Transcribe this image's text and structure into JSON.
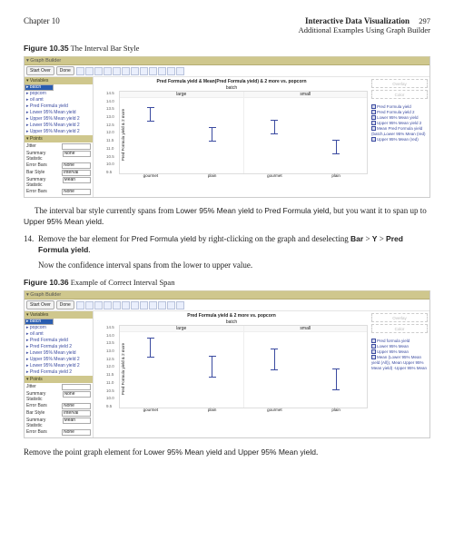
{
  "header": {
    "chapter": "Chapter 10",
    "title": "Interactive Data Visualization",
    "subtitle": "Additional Examples Using Graph Builder",
    "page": "297"
  },
  "fig35": {
    "caption_label": "Figure 10.35",
    "caption_text": "The Interval Bar Style",
    "gb_title": "Graph Builder",
    "btn1": "Start Over",
    "btn2": "Done",
    "vars_title": "Variables",
    "variables": [
      "batch",
      "popcorn",
      "oil amt",
      "Pred Formula yield",
      "Lower 95% Mean yield",
      "Upper 95% Mean yield 2",
      "Lower 95% Mean yield 2",
      "Upper 95% Mean yield 2"
    ],
    "sel_var_idx": 0,
    "points_title": "Points",
    "point_rows": [
      {
        "label": "Jitter",
        "value": ""
      },
      {
        "label": "Summary Statistic",
        "value": "None"
      },
      {
        "label": "Error Bars",
        "value": "None"
      },
      {
        "label": "Bar Style",
        "value": "Interval"
      },
      {
        "label": "Summary Statistic",
        "value": "Mean"
      },
      {
        "label": "Error Bars",
        "value": "None"
      }
    ],
    "chart_title": "Pred Formula yield & Mean(Pred Formula yield) & 2 more vs. popcorn",
    "sub_hdr": "batch",
    "panel_labels": [
      "large",
      "small"
    ],
    "x_categories": [
      "gourmet",
      "plain",
      "gourmet",
      "plain"
    ],
    "y_ticks": [
      "14.5",
      "14.0",
      "13.5",
      "13.0",
      "12.5",
      "12.0",
      "11.5",
      "11.0",
      "10.5",
      "10.0",
      "9.5"
    ],
    "y_label": "Pred Formula yield & 2 more",
    "slot1": "Overlay",
    "slot2": "Color",
    "legend": [
      "Pred Formula yield",
      "Pred Formula yield 2",
      "Lower 95% Mean yield",
      "Upper 95% Mean yield 2",
      "Mean Pred Formula yield (batch,Lower 95% Mean (red)",
      "Upper 95% Mean (red)"
    ],
    "bar_color": "#3a4aa0",
    "panel_bg": "#ffffff"
  },
  "para1_a": "The interval bar style currently spans from ",
  "para1_b": "Lower 95% Mean yield",
  "para1_c": " to ",
  "para1_d": "Pred Formula yield",
  "para1_e": ", but you want it to span up to ",
  "para1_f": "Upper 95% Mean yield",
  "para1_g": ".",
  "step14_n": "14.",
  "step14_a": "Remove the bar element for ",
  "step14_b": "Pred Formula yield",
  "step14_c": " by right-clicking on the graph and deselecting ",
  "step14_d": "Bar",
  "step14_e": " > ",
  "step14_f": "Y",
  "step14_g": " > ",
  "step14_h": "Pred Formula yield",
  "step14_i": ".",
  "step14_post": "Now the confidence interval spans from the lower to upper value.",
  "fig36": {
    "caption_label": "Figure 10.36",
    "caption_text": "Example of Correct Interval Span",
    "gb_title": "Graph Builder",
    "btn1": "Start Over",
    "btn2": "Done",
    "vars_title": "Variables",
    "variables": [
      "batch",
      "popcorn",
      "oil amt",
      "Pred Formula yield",
      "Pred Formula yield 2",
      "Lower 95% Mean yield",
      "Upper 95% Mean yield 2",
      "Lower 95% Mean yield 2",
      "Pred Formula yield 2"
    ],
    "sel_var_idx": 0,
    "points_title": "Points",
    "point_rows": [
      {
        "label": "Jitter",
        "value": ""
      },
      {
        "label": "Summary Statistic",
        "value": "None"
      },
      {
        "label": "Error Bars",
        "value": "None"
      },
      {
        "label": "Bar Style",
        "value": "Interval"
      },
      {
        "label": "Summary Statistic",
        "value": "Mean"
      },
      {
        "label": "Error Bars",
        "value": "None"
      }
    ],
    "chart_title": "Pred Formula yield & 2 more vs. popcorn",
    "sub_hdr": "batch",
    "panel_labels": [
      "large",
      "small"
    ],
    "x_categories": [
      "gourmet",
      "plain",
      "gourmet",
      "plain"
    ],
    "y_ticks": [
      "14.5",
      "14.0",
      "13.5",
      "13.0",
      "12.5",
      "12.0",
      "11.5",
      "11.0",
      "10.5",
      "10.0",
      "9.5"
    ],
    "y_label": "Pred Formula yield & 2 more",
    "slot1": "Overlay",
    "slot2": "Color",
    "legend": [
      "Pred formula yield",
      "Lower 95% Mean",
      "Upper 95% Mean",
      "Mean (Lower 95% Mean yield (All)), Mean Upper 95% Mean yield) -Upper 95% Mean"
    ],
    "bar_color": "#3a4aa0",
    "panel_bg": "#ffffff"
  },
  "footer_a": "Remove the point graph element for ",
  "footer_b": "Lower 95% Mean yield",
  "footer_c": " and ",
  "footer_d": "Upper 95% Mean yield",
  "footer_e": "."
}
